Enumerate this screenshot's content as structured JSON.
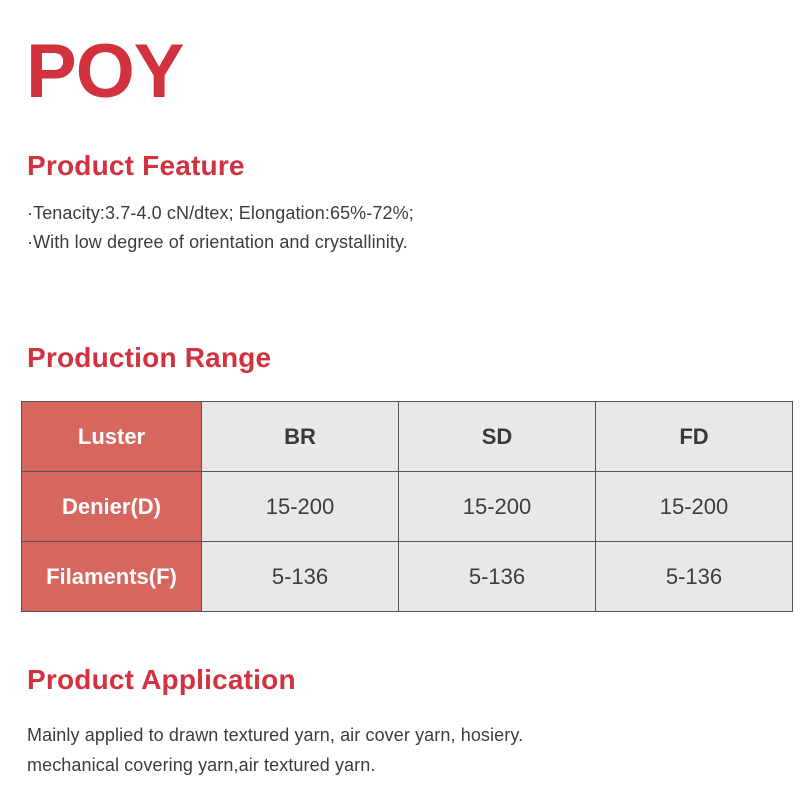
{
  "theme": {
    "heading_color": "#d1323e",
    "table_label_bg": "#d7665f",
    "table_cell_bg": "#e8e8e7",
    "table_border_color": "#565656",
    "body_text_color": "#3c3c3c"
  },
  "title": "POY",
  "product_feature": {
    "heading": "Product Feature",
    "lines": [
      "·Tenacity:3.7-4.0 cN/dtex; Elongation:65%-72%;",
      "·With low degree of orientation and crystallinity."
    ]
  },
  "production_range": {
    "heading": "Production Range",
    "table": {
      "columns": [
        "Luster",
        "BR",
        "SD",
        "FD"
      ],
      "rows": [
        {
          "label": "Denier(D)",
          "values": [
            "15-200",
            "15-200",
            "15-200"
          ]
        },
        {
          "label": "Filaments(F)",
          "values": [
            "5-136",
            "5-136",
            "5-136"
          ]
        }
      ]
    }
  },
  "product_application": {
    "heading": "Product Application",
    "lines": [
      "Mainly applied to drawn textured yarn, air cover yarn, hosiery.",
      "mechanical covering yarn,air textured yarn."
    ]
  }
}
